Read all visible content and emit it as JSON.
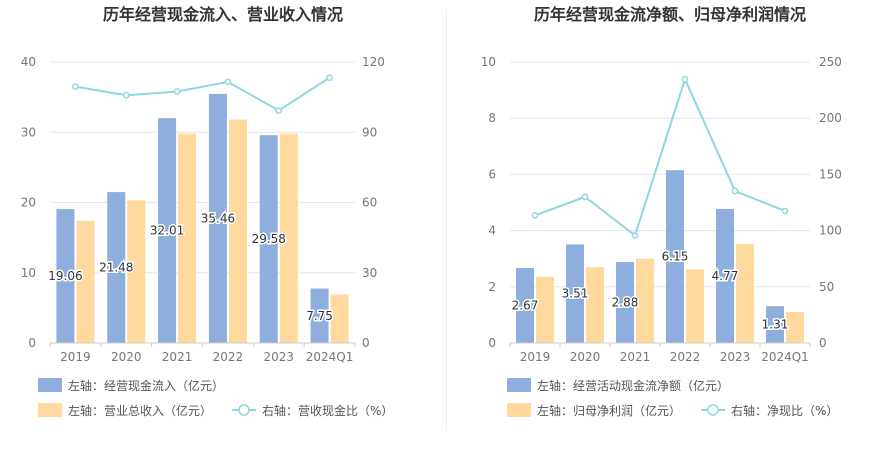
{
  "chart_data": [
    {
      "type": "bar",
      "title": "历年经营现金流入、营业收入情况",
      "categories": [
        "2019",
        "2020",
        "2021",
        "2022",
        "2023",
        "2024Q1"
      ],
      "y_left": {
        "ticks": [
          "0",
          "10",
          "20",
          "30",
          "40"
        ],
        "range": [
          0,
          40
        ]
      },
      "y_right": {
        "ticks": [
          "0",
          "30",
          "60",
          "90",
          "120"
        ],
        "range": [
          0,
          120
        ]
      },
      "series": [
        {
          "name": "左轴：经营现金流入（亿元）",
          "kind": "bar",
          "axis": "left",
          "color": "#8eaedd",
          "values": [
            19.06,
            21.48,
            32.01,
            35.46,
            29.58,
            7.75
          ],
          "labels": [
            "19.06",
            "21.48",
            "32.01",
            "35.46",
            "29.58",
            "7.75"
          ]
        },
        {
          "name": "左轴：营业总收入（亿元）",
          "kind": "bar",
          "axis": "left",
          "color": "#ffd99e",
          "values": [
            17.4,
            20.3,
            29.8,
            31.8,
            29.8,
            6.9
          ]
        },
        {
          "name": "右轴：营收现金比（%）",
          "kind": "line",
          "axis": "right",
          "color": "#8dd8de",
          "values": [
            109.5,
            105.8,
            107.4,
            111.5,
            99.3,
            113.3
          ]
        }
      ],
      "legend": "bottom",
      "grid": true
    },
    {
      "type": "bar",
      "title": "历年经营现金流净额、归母净利润情况",
      "categories": [
        "2019",
        "2020",
        "2021",
        "2022",
        "2023",
        "2024Q1"
      ],
      "y_left": {
        "ticks": [
          "0",
          "2",
          "4",
          "6",
          "8",
          "10"
        ],
        "range": [
          0,
          10
        ]
      },
      "y_right": {
        "ticks": [
          "0",
          "50",
          "100",
          "150",
          "200",
          "250"
        ],
        "range": [
          0,
          250
        ]
      },
      "series": [
        {
          "name": "左轴：经营活动现金流净额（亿元）",
          "kind": "bar",
          "axis": "left",
          "color": "#8eaedd",
          "values": [
            2.67,
            3.51,
            2.88,
            6.15,
            4.77,
            1.31
          ],
          "labels": [
            "2.67",
            "3.51",
            "2.88",
            "6.15",
            "4.77",
            "1.31"
          ]
        },
        {
          "name": "左轴：归母净利润（亿元）",
          "kind": "bar",
          "axis": "left",
          "color": "#ffd99e",
          "values": [
            2.35,
            2.7,
            3.0,
            2.62,
            3.52,
            1.1
          ]
        },
        {
          "name": "右轴：净现比（%）",
          "kind": "line",
          "axis": "right",
          "color": "#8dd8de",
          "values": [
            113.5,
            130.0,
            95.7,
            234.7,
            135.2,
            117.5
          ]
        }
      ],
      "legend": "bottom",
      "grid": true
    }
  ]
}
